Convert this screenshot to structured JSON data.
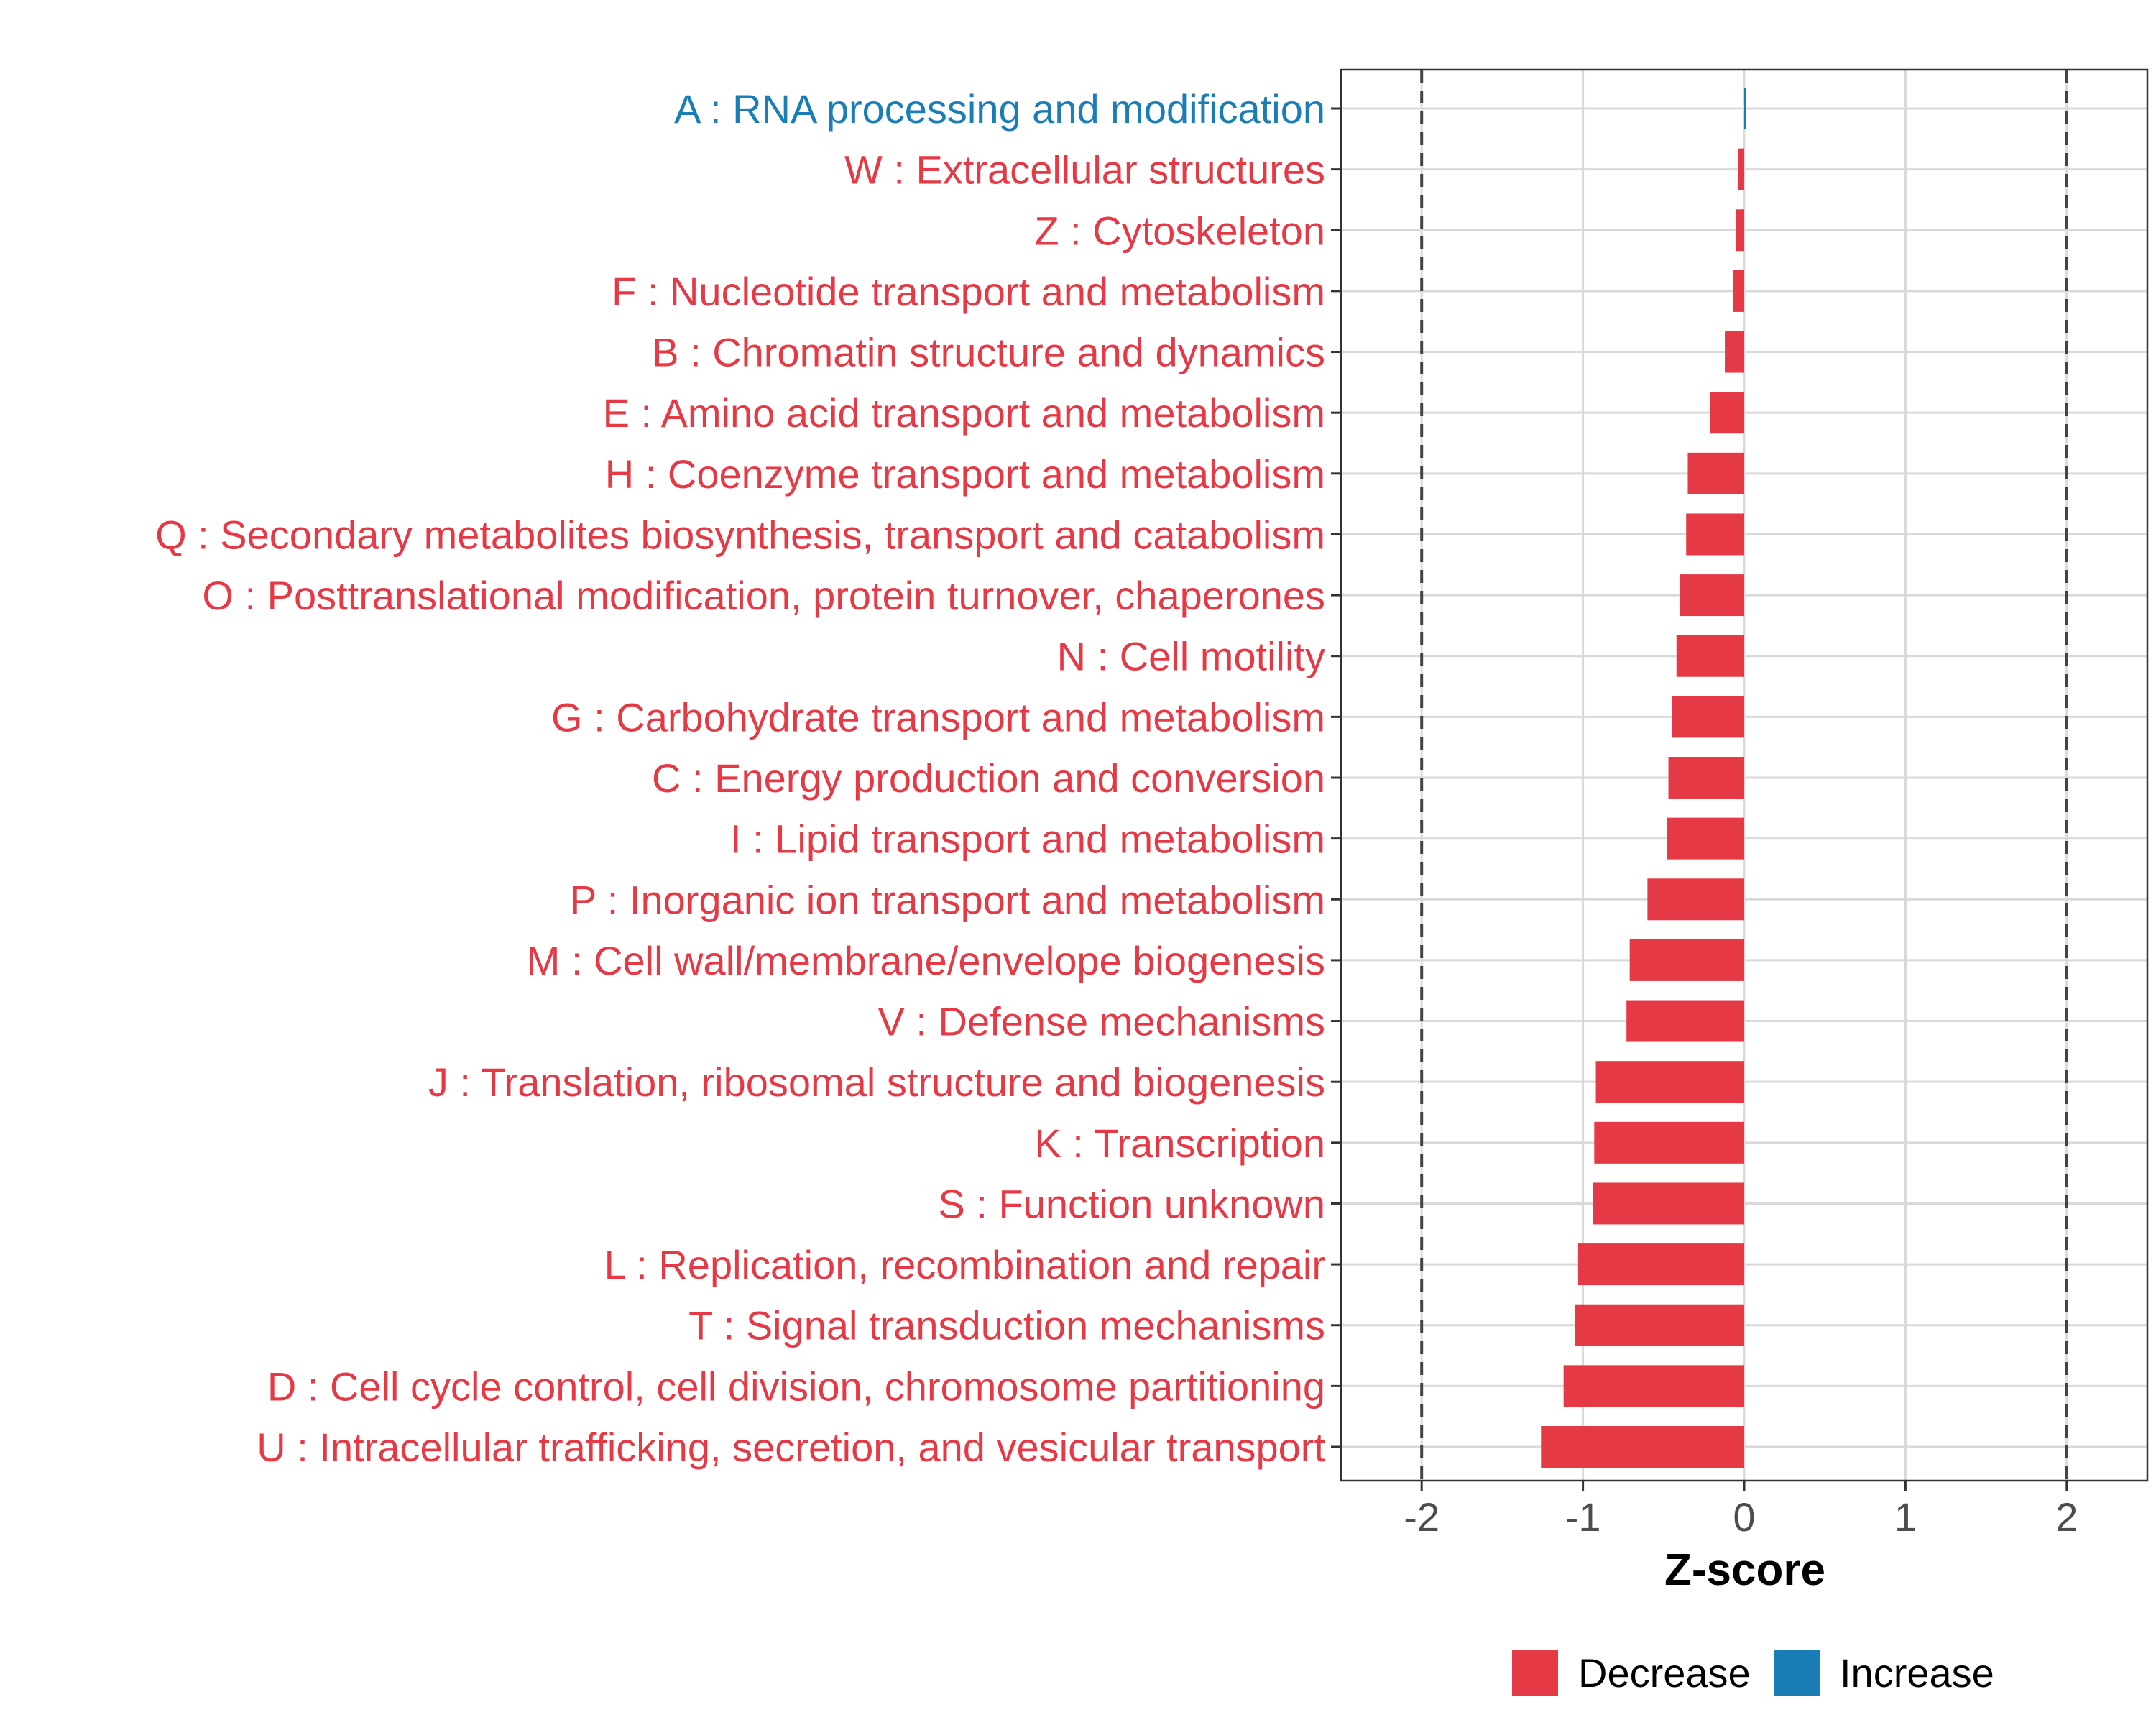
{
  "colors": {
    "decrease": "#E63946",
    "increase": "#1A7DB6",
    "grid": "#D9D9D9",
    "axis_text": "#4D4D4D",
    "threshold": "#444444",
    "frame": "#333333"
  },
  "legend": {
    "decrease_label": "Decrease",
    "increase_label": "Increase"
  },
  "chart_data": {
    "type": "bar",
    "orientation": "horizontal",
    "title": "",
    "xlabel": "Z-score",
    "ylabel": "",
    "xlim": [
      -2.5,
      2.5
    ],
    "x_ticks": [
      -2,
      -1,
      0,
      1,
      2
    ],
    "x_tick_labels": [
      "-2",
      "-1",
      "0",
      "1",
      "2"
    ],
    "threshold_lines": [
      -2,
      2
    ],
    "grid": true,
    "legend_position": "bottom",
    "categories": [
      "A : RNA processing and modification",
      "W : Extracellular structures",
      "Z : Cytoskeleton",
      "F : Nucleotide transport and metabolism",
      "B : Chromatin structure and dynamics",
      "E : Amino acid transport and metabolism",
      "H : Coenzyme transport and metabolism",
      "Q : Secondary metabolites biosynthesis, transport and catabolism",
      "O : Posttranslational modification, protein turnover, chaperones",
      "N : Cell motility",
      "G : Carbohydrate transport and metabolism",
      "C : Energy production and conversion",
      "I : Lipid transport and metabolism",
      "P : Inorganic ion transport and metabolism",
      "M : Cell wall/membrane/envelope biogenesis",
      "V : Defense mechanisms",
      "J : Translation, ribosomal structure and biogenesis",
      "K : Transcription",
      "S : Function unknown",
      "L : Replication, recombination and repair",
      "T : Signal transduction mechanisms",
      "D : Cell cycle control, cell division, chromosome partitioning",
      "U : Intracellular trafficking, secretion, and vesicular transport"
    ],
    "values": [
      0.01,
      -0.04,
      -0.05,
      -0.07,
      -0.12,
      -0.21,
      -0.35,
      -0.36,
      -0.4,
      -0.42,
      -0.45,
      -0.47,
      -0.48,
      -0.6,
      -0.71,
      -0.73,
      -0.92,
      -0.93,
      -0.94,
      -1.03,
      -1.05,
      -1.12,
      -1.26
    ],
    "directions": [
      "Increase",
      "Decrease",
      "Decrease",
      "Decrease",
      "Decrease",
      "Decrease",
      "Decrease",
      "Decrease",
      "Decrease",
      "Decrease",
      "Decrease",
      "Decrease",
      "Decrease",
      "Decrease",
      "Decrease",
      "Decrease",
      "Decrease",
      "Decrease",
      "Decrease",
      "Decrease",
      "Decrease",
      "Decrease",
      "Decrease"
    ]
  }
}
